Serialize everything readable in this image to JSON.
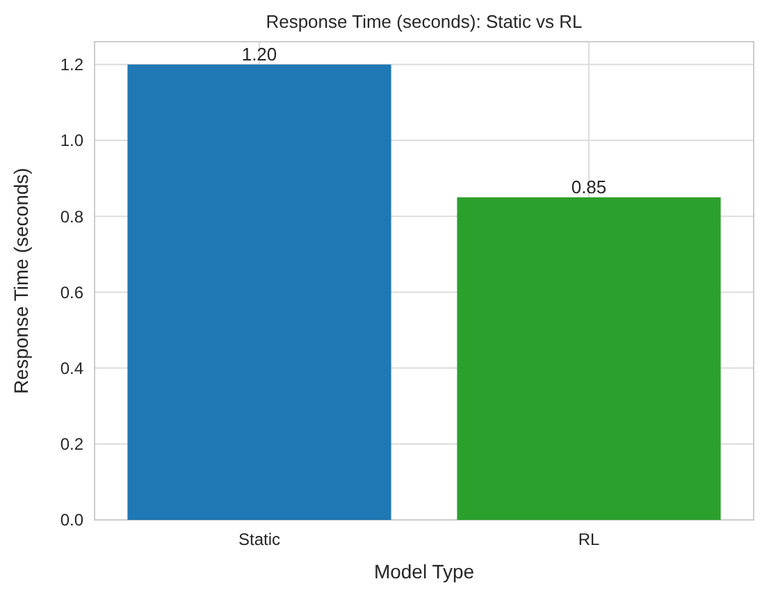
{
  "chart_data": {
    "type": "bar",
    "title": "Response Time (seconds): Static vs RL",
    "xlabel": "Model Type",
    "ylabel": "Response Time (seconds)",
    "categories": [
      "Static",
      "RL"
    ],
    "values": [
      1.2,
      0.85
    ],
    "colors": [
      "#1f77b4",
      "#2ca02c"
    ],
    "value_labels": [
      "1.20",
      "0.85"
    ],
    "ylim": [
      0,
      1.26
    ],
    "yticks": [
      {
        "value": 0,
        "label": "0.0"
      },
      {
        "value": 0.2,
        "label": "0.2"
      },
      {
        "value": 0.4,
        "label": "0.4"
      },
      {
        "value": 0.6,
        "label": "0.6"
      },
      {
        "value": 0.8,
        "label": "0.8"
      },
      {
        "value": 1.0,
        "label": "1.0"
      },
      {
        "value": 1.2,
        "label": "1.2"
      }
    ],
    "grid": true
  }
}
